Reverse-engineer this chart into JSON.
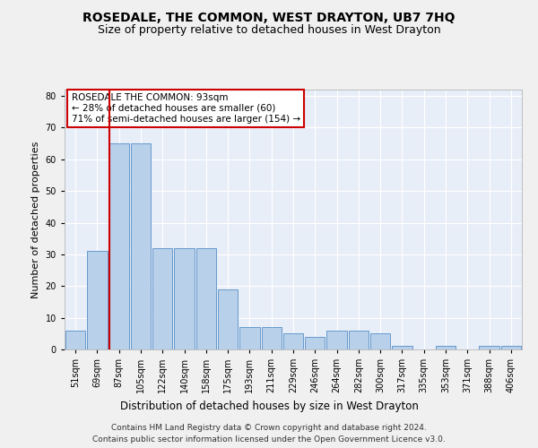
{
  "title": "ROSEDALE, THE COMMON, WEST DRAYTON, UB7 7HQ",
  "subtitle": "Size of property relative to detached houses in West Drayton",
  "xlabel": "Distribution of detached houses by size in West Drayton",
  "ylabel": "Number of detached properties",
  "footer_line1": "Contains HM Land Registry data © Crown copyright and database right 2024.",
  "footer_line2": "Contains public sector information licensed under the Open Government Licence v3.0.",
  "annotation_line1": "ROSEDALE THE COMMON: 93sqm",
  "annotation_line2": "← 28% of detached houses are smaller (60)",
  "annotation_line3": "71% of semi-detached houses are larger (154) →",
  "bin_labels": [
    "51sqm",
    "69sqm",
    "87sqm",
    "105sqm",
    "122sqm",
    "140sqm",
    "158sqm",
    "175sqm",
    "193sqm",
    "211sqm",
    "229sqm",
    "246sqm",
    "264sqm",
    "282sqm",
    "300sqm",
    "317sqm",
    "335sqm",
    "353sqm",
    "371sqm",
    "388sqm",
    "406sqm"
  ],
  "bar_values": [
    6,
    31,
    65,
    65,
    32,
    32,
    32,
    19,
    7,
    7,
    5,
    4,
    6,
    6,
    5,
    1,
    0,
    1,
    0,
    1,
    1
  ],
  "bar_color": "#b8d0ea",
  "bar_edge_color": "#6699cc",
  "vline_index": 2,
  "vline_color": "#cc0000",
  "ylim": [
    0,
    82
  ],
  "yticks": [
    0,
    10,
    20,
    30,
    40,
    50,
    60,
    70,
    80
  ],
  "bg_color": "#e8eef8",
  "grid_color": "#ffffff",
  "fig_bg_color": "#f0f0f0",
  "annotation_box_facecolor": "#ffffff",
  "annotation_box_edgecolor": "#cc0000",
  "title_fontsize": 10,
  "subtitle_fontsize": 9,
  "ylabel_fontsize": 8,
  "xlabel_fontsize": 8.5,
  "tick_fontsize": 7,
  "annotation_fontsize": 7.5,
  "footer_fontsize": 6.5
}
